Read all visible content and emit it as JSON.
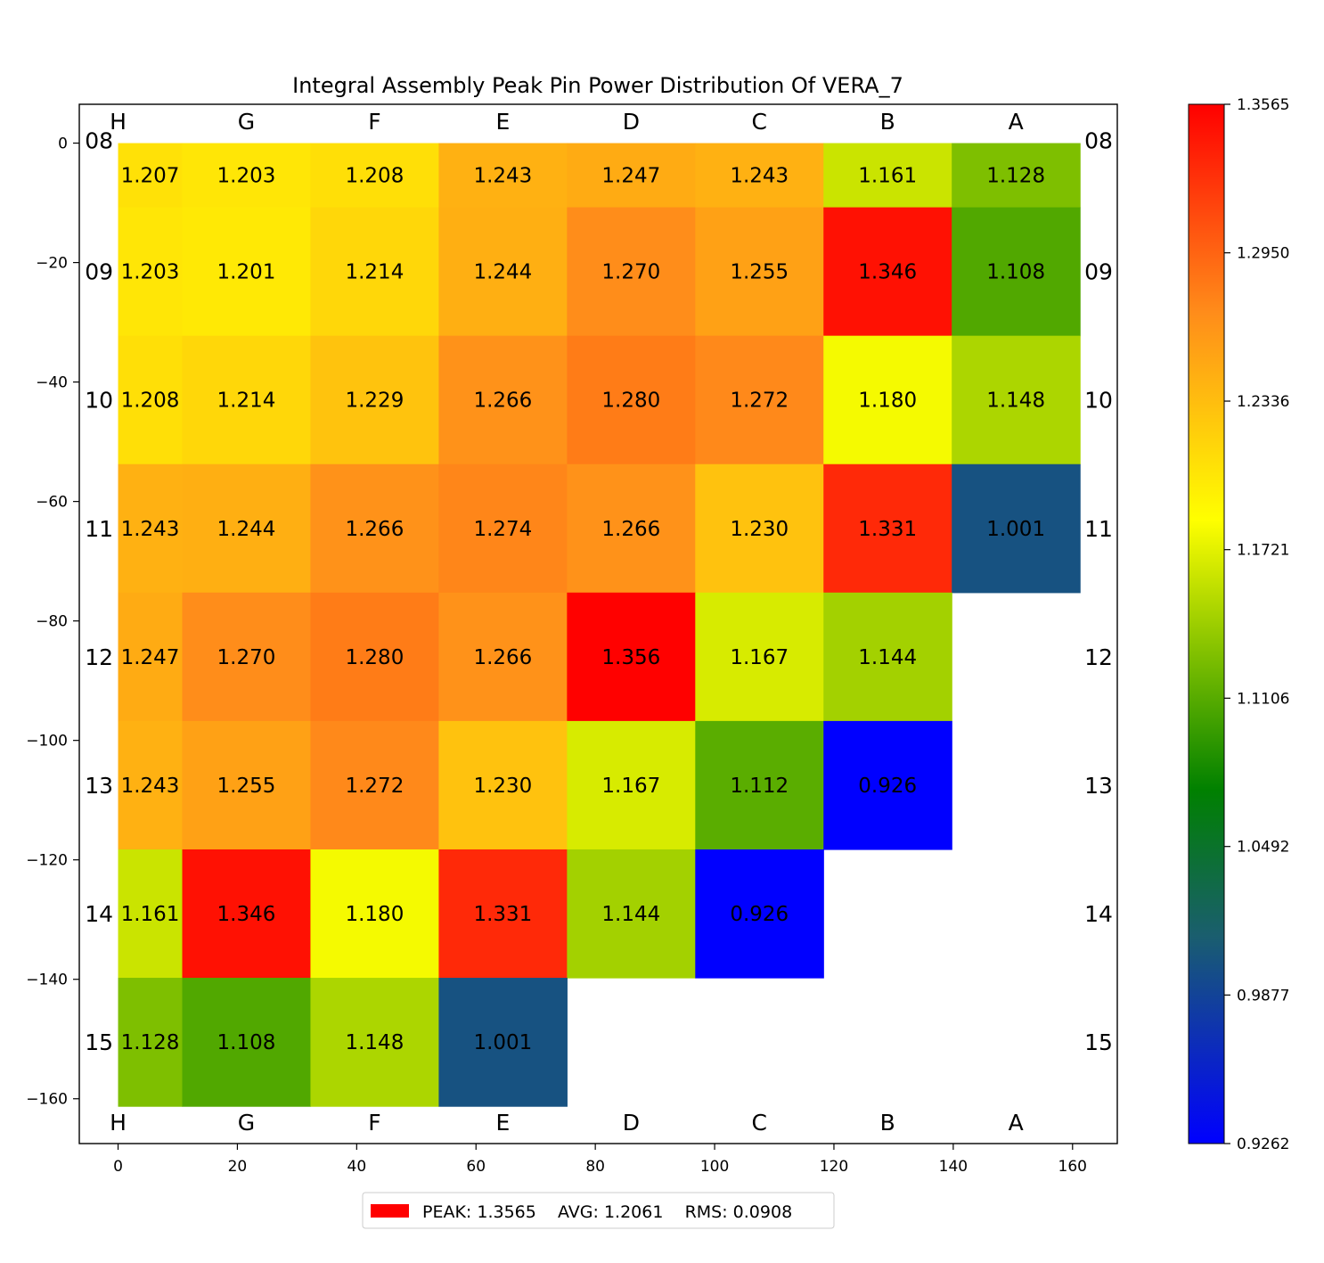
{
  "chart_data": {
    "type": "heatmap",
    "title": "Integral Assembly Peak Pin Power Distribution Of VERA_7",
    "xlabel": "",
    "ylabel": "",
    "xlim": [
      -6.5,
      167.5
    ],
    "ylim": [
      -167.5,
      6.5
    ],
    "x_ticks": [
      0,
      20,
      40,
      60,
      80,
      100,
      120,
      140,
      160
    ],
    "y_ticks": [
      0,
      -20,
      -40,
      -60,
      -80,
      -100,
      -120,
      -140,
      -160
    ],
    "columns": [
      "H",
      "G",
      "F",
      "E",
      "D",
      "C",
      "B",
      "A"
    ],
    "rows": [
      "08",
      "09",
      "10",
      "11",
      "12",
      "13",
      "14",
      "15"
    ],
    "column_edges": [
      0,
      10.75,
      32.25,
      53.75,
      75.25,
      96.75,
      118.25,
      139.75,
      161.25
    ],
    "row_edges": [
      0,
      -10.75,
      -32.25,
      -53.75,
      -75.25,
      -96.75,
      -118.25,
      -139.75,
      -161.25
    ],
    "values": [
      [
        1.207,
        1.203,
        1.208,
        1.243,
        1.247,
        1.243,
        1.161,
        1.128
      ],
      [
        1.203,
        1.201,
        1.214,
        1.244,
        1.27,
        1.255,
        1.346,
        1.108
      ],
      [
        1.208,
        1.214,
        1.229,
        1.266,
        1.28,
        1.272,
        1.18,
        1.148
      ],
      [
        1.243,
        1.244,
        1.266,
        1.274,
        1.266,
        1.23,
        1.331,
        1.001
      ],
      [
        1.247,
        1.27,
        1.28,
        1.266,
        1.356,
        1.167,
        1.144,
        null
      ],
      [
        1.243,
        1.255,
        1.272,
        1.23,
        1.167,
        1.112,
        0.926,
        null
      ],
      [
        1.161,
        1.346,
        1.18,
        1.331,
        1.144,
        0.926,
        null,
        null
      ],
      [
        1.128,
        1.108,
        1.148,
        1.001,
        null,
        null,
        null,
        null
      ]
    ],
    "value_labels": [
      [
        "1.207",
        "1.203",
        "1.208",
        "1.243",
        "1.247",
        "1.243",
        "1.161",
        "1.128"
      ],
      [
        "1.203",
        "1.201",
        "1.214",
        "1.244",
        "1.270",
        "1.255",
        "1.346",
        "1.108"
      ],
      [
        "1.208",
        "1.214",
        "1.229",
        "1.266",
        "1.280",
        "1.272",
        "1.180",
        "1.148"
      ],
      [
        "1.243",
        "1.244",
        "1.266",
        "1.274",
        "1.266",
        "1.230",
        "1.331",
        "1.001"
      ],
      [
        "1.247",
        "1.270",
        "1.280",
        "1.266",
        "1.356",
        "1.167",
        "1.144",
        null
      ],
      [
        "1.243",
        "1.255",
        "1.272",
        "1.230",
        "1.167",
        "1.112",
        "0.926",
        null
      ],
      [
        "1.161",
        "1.346",
        "1.180",
        "1.331",
        "1.144",
        "0.926",
        null,
        null
      ],
      [
        "1.128",
        "1.108",
        "1.148",
        "1.001",
        null,
        null,
        null,
        null
      ]
    ],
    "colorbar": {
      "min": 0.9262,
      "max": 1.3565,
      "tick_values": [
        1.3565,
        1.295,
        1.2336,
        1.1721,
        1.1106,
        1.0492,
        0.9877,
        0.9262
      ],
      "tick_labels": [
        "1.3565",
        "1.2950",
        "1.2336",
        "1.1721",
        "1.1106",
        "1.0492",
        "0.9877",
        "0.9262"
      ],
      "stops": [
        {
          "pos": 0.0,
          "color": "#0000ff"
        },
        {
          "pos": 0.2,
          "color": "#1a5e6e"
        },
        {
          "pos": 0.34,
          "color": "#008000"
        },
        {
          "pos": 0.6,
          "color": "#ffff00"
        },
        {
          "pos": 0.8,
          "color": "#ff8c1a"
        },
        {
          "pos": 1.0,
          "color": "#ff0000"
        }
      ]
    },
    "legend": {
      "placement": "bottom-center",
      "swatch_color": "#ff0000",
      "text": "PEAK: 1.3565    AVG: 1.2061    RMS: 0.0908"
    },
    "grid": false
  }
}
